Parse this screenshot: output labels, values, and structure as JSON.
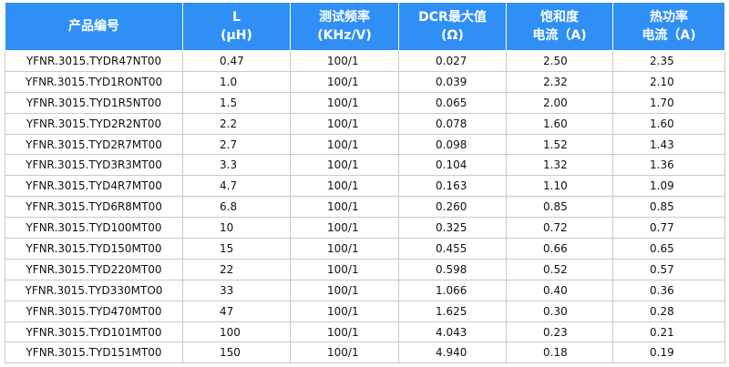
{
  "table": {
    "header": [
      [
        "产品编号"
      ],
      [
        "L",
        "(μH)"
      ],
      [
        "测试频率",
        "(KHz/V)"
      ],
      [
        "DCR最大值",
        "(Ω)"
      ],
      [
        "饱和度",
        "电流（A)"
      ],
      [
        "热功率",
        "电流（A)"
      ]
    ],
    "rows": [
      [
        "YFNR.3015.TYDR47NT00",
        "0.47",
        "100/1",
        "0.027",
        "2.50",
        "2.35"
      ],
      [
        "YFNR.3015.TYD1RONT00",
        "1.0",
        "100/1",
        "0.039",
        "2.32",
        "2.10"
      ],
      [
        "YFNR.3015.TYD1R5NT00",
        "1.5",
        "100/1",
        "0.065",
        "2.00",
        "1.70"
      ],
      [
        "YFNR.3015.TYD2R2NT00",
        "2.2",
        "100/1",
        "0.078",
        "1.60",
        "1.60"
      ],
      [
        "YFNR.3015.TYD2R7MT00",
        "2.7",
        "100/1",
        "0.098",
        "1.52",
        "1.43"
      ],
      [
        "YFNR.3015.TYD3R3MT00",
        "3.3",
        "100/1",
        "0.104",
        "1.32",
        "1.36"
      ],
      [
        "YFNR.3015.TYD4R7MT00",
        "4.7",
        "100/1",
        "0.163",
        "1.10",
        "1.09"
      ],
      [
        "YFNR.3015.TYD6R8MT00",
        "6.8",
        "100/1",
        "0.260",
        "0.85",
        "0.85"
      ],
      [
        "YFNR.3015.TYD100MT00",
        "10",
        "100/1",
        "0.325",
        "0.72",
        "0.77"
      ],
      [
        "YFNR.3015.TYD150MT00",
        "15",
        "100/1",
        "0.455",
        "0.66",
        "0.65"
      ],
      [
        "YFNR.3015.TYD220MT00",
        "22",
        "100/1",
        "0.598",
        "0.52",
        "0.57"
      ],
      [
        "YFNR.3015.TYD330MTO0",
        "33",
        "100/1",
        "1.066",
        "0.40",
        "0.36"
      ],
      [
        "YFNR.3015.TYD470MT00",
        "47",
        "100/1",
        "1.625",
        "0.30",
        "0.28"
      ],
      [
        "YFNR.3015.TYD101MT00",
        "100",
        "100/1",
        "4.043",
        "0.23",
        "0.21"
      ],
      [
        "YFNR.3015.TYD151MT00",
        "150",
        "100/1",
        "4.940",
        "0.18",
        "0.19"
      ]
    ]
  }
}
